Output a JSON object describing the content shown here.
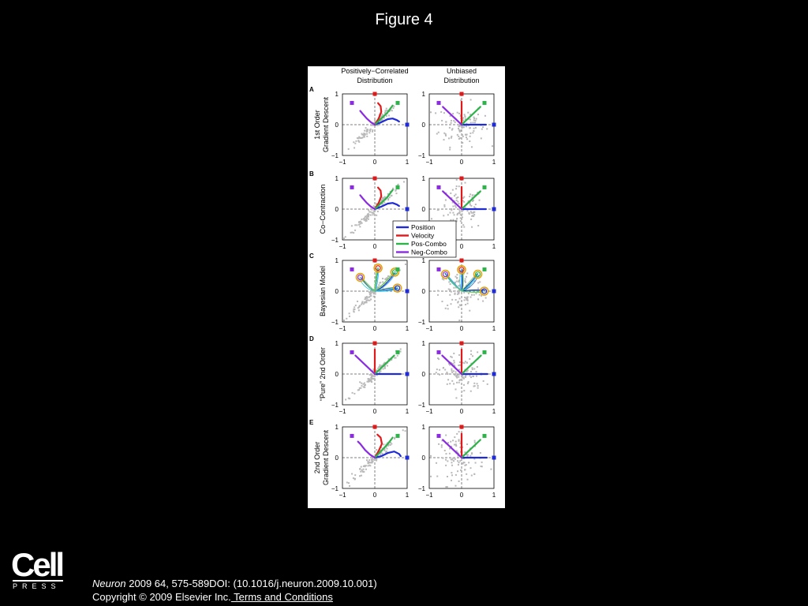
{
  "slide": {
    "title": "Figure 4"
  },
  "citation": {
    "journal": "Neuron",
    "details": " 2009 64, 575-589DOI: (10.1016/j.neuron.2009.10.001)",
    "copyright": "Copyright © 2009 Elsevier Inc.",
    "terms_link": " Terms and Conditions"
  },
  "logo": {
    "word": "Cell",
    "sub": "PRESS"
  },
  "figure": {
    "column_headers": [
      [
        "Positively−Correlated",
        "Distribution"
      ],
      [
        "Unbiased",
        "Distribution"
      ]
    ],
    "rows": [
      {
        "letter": "A",
        "label_lines": [
          "1st Order",
          "Gradient Descent"
        ]
      },
      {
        "letter": "B",
        "label_lines": [
          "Co−Contraction"
        ]
      },
      {
        "letter": "C",
        "label_lines": [
          "Bayesian Model"
        ]
      },
      {
        "letter": "D",
        "label_lines": [
          "“Pure” 2nd Order"
        ]
      },
      {
        "letter": "E",
        "label_lines": [
          "2nd Order",
          "Gradient Descent"
        ]
      }
    ],
    "legend": [
      "Position",
      "Velocity",
      "Pos-Combo",
      "Neg-Combo"
    ],
    "tick_labels": [
      "−1",
      "0",
      "1"
    ]
  },
  "chart_data": {
    "type": "scatter",
    "xlim": [
      -1,
      1
    ],
    "ylim": [
      -1,
      1
    ],
    "xticks": [
      -1,
      0,
      1
    ],
    "yticks": [
      -1,
      0,
      1
    ],
    "grid": false,
    "legend_position": "between rows B and C, left column",
    "colors": {
      "Position": "#1f2bd6",
      "Velocity": "#e01a1a",
      "Pos-Combo": "#2db34a",
      "Neg-Combo": "#8a2be2",
      "scatter": "#b8b8b8"
    },
    "targets": [
      {
        "name": "Position",
        "x": 1.0,
        "y": 0.0
      },
      {
        "name": "Velocity",
        "x": 0.0,
        "y": 1.0
      },
      {
        "name": "Pos-Combo",
        "x": 0.7071,
        "y": 0.7071
      },
      {
        "name": "Neg-Combo",
        "x": -0.7071,
        "y": 0.7071
      }
    ],
    "panels": [
      {
        "row": "A",
        "distribution": "Positively-Correlated",
        "series": [
          {
            "name": "Position",
            "points": [
              [
                0,
                0
              ],
              [
                0.2,
                0.08
              ],
              [
                0.4,
                0.18
              ],
              [
                0.55,
                0.2
              ],
              [
                0.68,
                0.15
              ],
              [
                0.75,
                0.1
              ]
            ]
          },
          {
            "name": "Velocity",
            "points": [
              [
                0,
                0
              ],
              [
                0.12,
                0.2
              ],
              [
                0.2,
                0.42
              ],
              [
                0.18,
                0.6
              ],
              [
                0.1,
                0.7
              ]
            ]
          },
          {
            "name": "Pos-Combo",
            "points": [
              [
                0,
                0
              ],
              [
                0.2,
                0.2
              ],
              [
                0.38,
                0.38
              ],
              [
                0.5,
                0.55
              ],
              [
                0.55,
                0.62
              ]
            ]
          },
          {
            "name": "Neg-Combo",
            "points": [
              [
                0,
                0
              ],
              [
                -0.12,
                0.08
              ],
              [
                -0.25,
                0.2
              ],
              [
                -0.38,
                0.36
              ],
              [
                -0.45,
                0.45
              ]
            ]
          }
        ]
      },
      {
        "row": "A",
        "distribution": "Unbiased",
        "series": [
          {
            "name": "Position",
            "points": [
              [
                0,
                0
              ],
              [
                0.75,
                0
              ]
            ]
          },
          {
            "name": "Velocity",
            "points": [
              [
                0,
                0
              ],
              [
                0,
                0.75
              ]
            ]
          },
          {
            "name": "Pos-Combo",
            "points": [
              [
                0,
                0
              ],
              [
                0.58,
                0.58
              ]
            ]
          },
          {
            "name": "Neg-Combo",
            "points": [
              [
                0,
                0
              ],
              [
                -0.58,
                0.58
              ]
            ]
          }
        ]
      },
      {
        "row": "B",
        "distribution": "Positively-Correlated",
        "series": [
          {
            "name": "Position",
            "points": [
              [
                0,
                0
              ],
              [
                0.2,
                0.08
              ],
              [
                0.4,
                0.18
              ],
              [
                0.55,
                0.2
              ],
              [
                0.68,
                0.15
              ],
              [
                0.75,
                0.1
              ]
            ]
          },
          {
            "name": "Velocity",
            "points": [
              [
                0,
                0
              ],
              [
                0.12,
                0.2
              ],
              [
                0.2,
                0.42
              ],
              [
                0.18,
                0.6
              ],
              [
                0.1,
                0.7
              ]
            ]
          },
          {
            "name": "Pos-Combo",
            "points": [
              [
                0,
                0
              ],
              [
                0.2,
                0.2
              ],
              [
                0.38,
                0.38
              ],
              [
                0.5,
                0.55
              ],
              [
                0.55,
                0.62
              ]
            ]
          },
          {
            "name": "Neg-Combo",
            "points": [
              [
                0,
                0
              ],
              [
                -0.12,
                0.08
              ],
              [
                -0.25,
                0.2
              ],
              [
                -0.38,
                0.36
              ],
              [
                -0.45,
                0.45
              ]
            ]
          }
        ]
      },
      {
        "row": "B",
        "distribution": "Unbiased",
        "series": [
          {
            "name": "Position",
            "points": [
              [
                0,
                0
              ],
              [
                0.75,
                0
              ]
            ]
          },
          {
            "name": "Velocity",
            "points": [
              [
                0,
                0
              ],
              [
                0,
                0.72
              ]
            ]
          },
          {
            "name": "Pos-Combo",
            "points": [
              [
                0,
                0
              ],
              [
                0.58,
                0.58
              ]
            ]
          },
          {
            "name": "Neg-Combo",
            "points": [
              [
                0,
                0
              ],
              [
                -0.58,
                0.58
              ]
            ]
          }
        ]
      },
      {
        "row": "C",
        "distribution": "Positively-Correlated",
        "series": [
          {
            "name": "Position",
            "points": [
              [
                0,
                0
              ],
              [
                0.7,
                0.1
              ]
            ]
          },
          {
            "name": "Velocity",
            "points": [
              [
                0,
                0
              ],
              [
                0.1,
                0.75
              ]
            ]
          },
          {
            "name": "Pos-Combo",
            "points": [
              [
                0,
                0
              ],
              [
                0.62,
                0.62
              ]
            ]
          },
          {
            "name": "Neg-Combo",
            "points": [
              [
                0,
                0
              ],
              [
                -0.45,
                0.45
              ]
            ]
          }
        ]
      },
      {
        "row": "C",
        "distribution": "Unbiased",
        "series": [
          {
            "name": "Position",
            "points": [
              [
                0,
                0
              ],
              [
                0.7,
                0
              ]
            ]
          },
          {
            "name": "Velocity",
            "points": [
              [
                0,
                0
              ],
              [
                0,
                0.7
              ]
            ]
          },
          {
            "name": "Pos-Combo",
            "points": [
              [
                0,
                0
              ],
              [
                0.5,
                0.55
              ]
            ]
          },
          {
            "name": "Neg-Combo",
            "points": [
              [
                0,
                0
              ],
              [
                -0.5,
                0.55
              ]
            ]
          }
        ]
      },
      {
        "row": "D",
        "distribution": "Positively-Correlated",
        "series": [
          {
            "name": "Position",
            "points": [
              [
                0,
                0
              ],
              [
                0.8,
                0
              ]
            ]
          },
          {
            "name": "Velocity",
            "points": [
              [
                0,
                0
              ],
              [
                0,
                0.8
              ]
            ]
          },
          {
            "name": "Pos-Combo",
            "points": [
              [
                0,
                0
              ],
              [
                0.6,
                0.6
              ]
            ]
          },
          {
            "name": "Neg-Combo",
            "points": [
              [
                0,
                0
              ],
              [
                -0.6,
                0.6
              ]
            ]
          }
        ]
      },
      {
        "row": "D",
        "distribution": "Unbiased",
        "series": [
          {
            "name": "Position",
            "points": [
              [
                0,
                0
              ],
              [
                0.8,
                0
              ]
            ]
          },
          {
            "name": "Velocity",
            "points": [
              [
                0,
                0
              ],
              [
                0,
                0.8
              ]
            ]
          },
          {
            "name": "Pos-Combo",
            "points": [
              [
                0,
                0
              ],
              [
                0.6,
                0.6
              ]
            ]
          },
          {
            "name": "Neg-Combo",
            "points": [
              [
                0,
                0
              ],
              [
                -0.6,
                0.6
              ]
            ]
          }
        ]
      },
      {
        "row": "E",
        "distribution": "Positively-Correlated",
        "series": [
          {
            "name": "Position",
            "points": [
              [
                0,
                0
              ],
              [
                0.2,
                0.05
              ],
              [
                0.4,
                0.15
              ],
              [
                0.6,
                0.2
              ],
              [
                0.75,
                0.12
              ],
              [
                0.8,
                0.05
              ]
            ]
          },
          {
            "name": "Velocity",
            "points": [
              [
                0,
                0
              ],
              [
                0.12,
                0.22
              ],
              [
                0.22,
                0.45
              ],
              [
                0.18,
                0.65
              ],
              [
                0.08,
                0.75
              ]
            ]
          },
          {
            "name": "Pos-Combo",
            "points": [
              [
                0,
                0
              ],
              [
                0.2,
                0.22
              ],
              [
                0.38,
                0.42
              ],
              [
                0.5,
                0.58
              ],
              [
                0.55,
                0.65
              ]
            ]
          },
          {
            "name": "Neg-Combo",
            "points": [
              [
                0,
                0
              ],
              [
                -0.15,
                0.1
              ],
              [
                -0.3,
                0.25
              ],
              [
                -0.45,
                0.45
              ],
              [
                -0.52,
                0.52
              ]
            ]
          }
        ]
      },
      {
        "row": "E",
        "distribution": "Unbiased",
        "series": [
          {
            "name": "Position",
            "points": [
              [
                0,
                0
              ],
              [
                0.78,
                0
              ]
            ]
          },
          {
            "name": "Velocity",
            "points": [
              [
                0,
                0
              ],
              [
                0,
                0.78
              ]
            ]
          },
          {
            "name": "Pos-Combo",
            "points": [
              [
                0,
                0
              ],
              [
                0.58,
                0.58
              ]
            ]
          },
          {
            "name": "Neg-Combo",
            "points": [
              [
                0,
                0
              ],
              [
                -0.58,
                0.58
              ]
            ]
          }
        ]
      }
    ]
  }
}
